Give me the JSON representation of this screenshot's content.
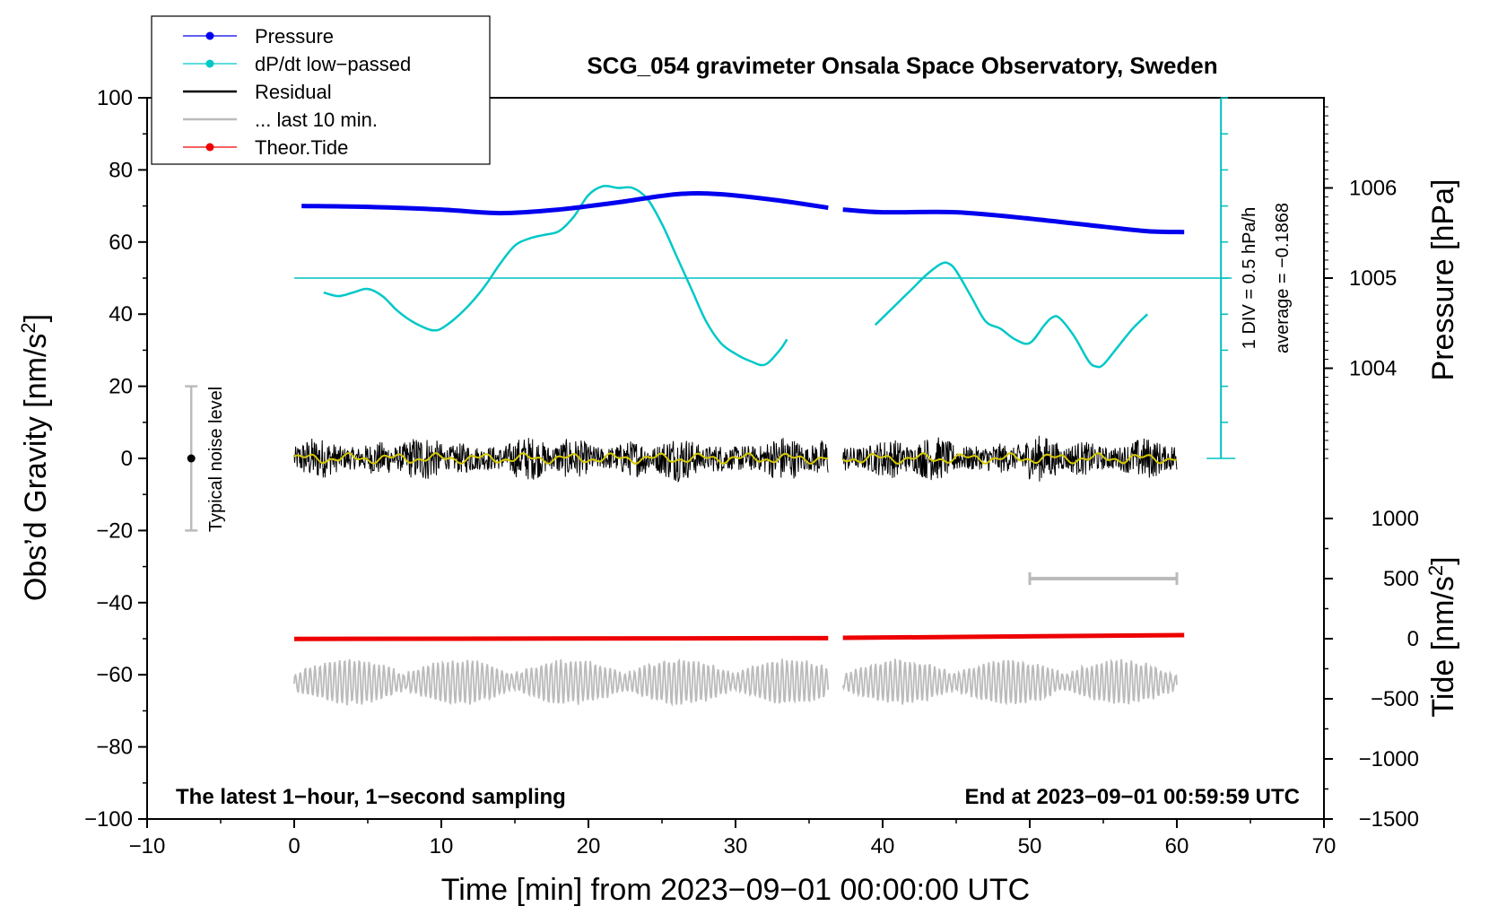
{
  "chart_data": {
    "type": "line",
    "title": "SCG_054 gravimeter Onsala Space Observatory, Sweden",
    "xlabel": "Time [min] from 2023−09−01 00:00:00 UTC",
    "ylabel_text": "Obs’d Gravity [nm/s",
    "ylabel_sup": "2",
    "ylabel_close": "]",
    "y2label": "Pressure [hPa]",
    "y3label_text": "Tide [nm/s",
    "y3label_sup": "2",
    "y3label_close": "]",
    "xlim": [
      -10,
      70
    ],
    "ylim": [
      -100,
      100
    ],
    "pressure_range": [
      1003,
      1007
    ],
    "tide_range": [
      -1500,
      1500
    ],
    "xticks": [
      -10,
      0,
      10,
      20,
      30,
      40,
      50,
      60,
      70
    ],
    "yticks": [
      -100,
      -80,
      -60,
      -40,
      -20,
      0,
      20,
      40,
      60,
      80,
      100
    ],
    "pressure_ticks": [
      1004,
      1005,
      1006
    ],
    "tide_ticks": [
      -1500,
      -1000,
      -500,
      0,
      500,
      1000
    ],
    "tick_labels": {
      "x": [
        "−10",
        "0",
        "10",
        "20",
        "30",
        "40",
        "50",
        "60",
        "70"
      ],
      "y": [
        "−100",
        "−80",
        "−60",
        "−40",
        "−20",
        "0",
        "20",
        "40",
        "60",
        "80",
        "100"
      ],
      "pressure": [
        "1004",
        "1005",
        "1006"
      ],
      "tide": [
        "−1500",
        "−1000",
        "−500",
        "0",
        "500",
        "1000"
      ]
    },
    "legend": {
      "position": "top-left",
      "entries": [
        {
          "label": "Pressure",
          "color": "#0000ee",
          "marker": true
        },
        {
          "label": "dP/dt low−passed",
          "color": "#00c8c8",
          "marker": true
        },
        {
          "label": "Residual",
          "color": "#000000",
          "marker": false
        },
        {
          "label": "... last 10 min.",
          "color": "#bbbbbb",
          "marker": false
        },
        {
          "label": "Theor.Tide",
          "color": "#ee0000",
          "marker": true
        }
      ]
    },
    "annotations": {
      "bottom_left": "The latest 1−hour, 1−second sampling",
      "bottom_right": "End at 2023−09−01 00:59:59 UTC",
      "noise_label": "Typical noise level",
      "dpdt_scale": "1 DIV = 0.5 hPa/h",
      "dpdt_average": "average = −0.1868"
    },
    "noise_bar": {
      "x": -7,
      "center": 0,
      "half_range": 20
    },
    "last10_bar": {
      "x_start": 50,
      "x_end": 60,
      "tide_value": 500
    },
    "gap": {
      "start": 36.3,
      "end": 37.3
    },
    "dpdt_scale_axis": {
      "x": 63,
      "range": [
        0,
        100
      ],
      "divisions": 10,
      "baseline": 50
    },
    "series": [
      {
        "name": "Pressure",
        "unit": "hPa",
        "color": "#0000ee",
        "x": [
          0.5,
          5,
          10,
          14,
          18,
          22,
          26,
          29,
          33,
          36.3,
          37.3,
          40,
          45,
          50,
          55,
          58,
          60.5
        ],
        "values": [
          1005.8,
          1005.79,
          1005.76,
          1005.72,
          1005.76,
          1005.84,
          1005.93,
          1005.93,
          1005.86,
          1005.78,
          1005.76,
          1005.73,
          1005.73,
          1005.66,
          1005.57,
          1005.52,
          1005.51
        ]
      },
      {
        "name": "dP/dt low−passed",
        "unit": "nm/s2 (scaled)",
        "color": "#00c8c8",
        "segments": [
          {
            "x": [
              2,
              3,
              4,
              5,
              6,
              7,
              8,
              9,
              9.5,
              10,
              11,
              12,
              13,
              14,
              15,
              16,
              17,
              18,
              19,
              20,
              21,
              22,
              23,
              24,
              25,
              26,
              27,
              28,
              29,
              30,
              31,
              32,
              33,
              33.5
            ],
            "values": [
              46,
              45,
              46,
              47,
              45,
              41,
              38,
              36,
              35.5,
              36,
              39,
              43,
              48,
              54,
              59,
              61,
              62,
              63,
              67,
              73,
              75.5,
              75,
              75,
              72,
              65,
              56,
              47,
              38,
              32,
              29,
              27,
              26,
              30,
              33
            ]
          },
          {
            "x": [
              39.5,
              40,
              41,
              42,
              43,
              44,
              44.5,
              45,
              46,
              47,
              48,
              49,
              50,
              51,
              51.5,
              52,
              53,
              54,
              54.5,
              55,
              56,
              57,
              58
            ],
            "values": [
              37,
              39,
              43,
              47,
              51,
              54,
              54,
              52,
              45,
              38,
              36,
              33,
              32,
              37,
              39,
              39,
              34,
              27,
              25.5,
              26,
              31,
              36,
              40
            ]
          }
        ]
      },
      {
        "name": "Residual",
        "unit": "nm/s2",
        "color": "#000000",
        "x_range": [
          0,
          60
        ],
        "mean": 0,
        "amplitude": 5
      },
      {
        "name": "Residual smoothed",
        "unit": "nm/s2",
        "color": "#d4c800",
        "x_range": [
          0,
          60
        ],
        "mean": 0,
        "amplitude": 1.5
      },
      {
        "name": "Theor.Tide",
        "unit": "nm/s2",
        "color": "#ee0000",
        "x": [
          0,
          36.3,
          37.3,
          60.5
        ],
        "values": [
          -2,
          5,
          7,
          30
        ]
      },
      {
        "name": "... last 10 min.",
        "unit": "nm/s2",
        "color": "#bbbbbb",
        "x_range": [
          0,
          60
        ],
        "mean": -62,
        "amplitude": 6
      }
    ],
    "grid": false
  }
}
